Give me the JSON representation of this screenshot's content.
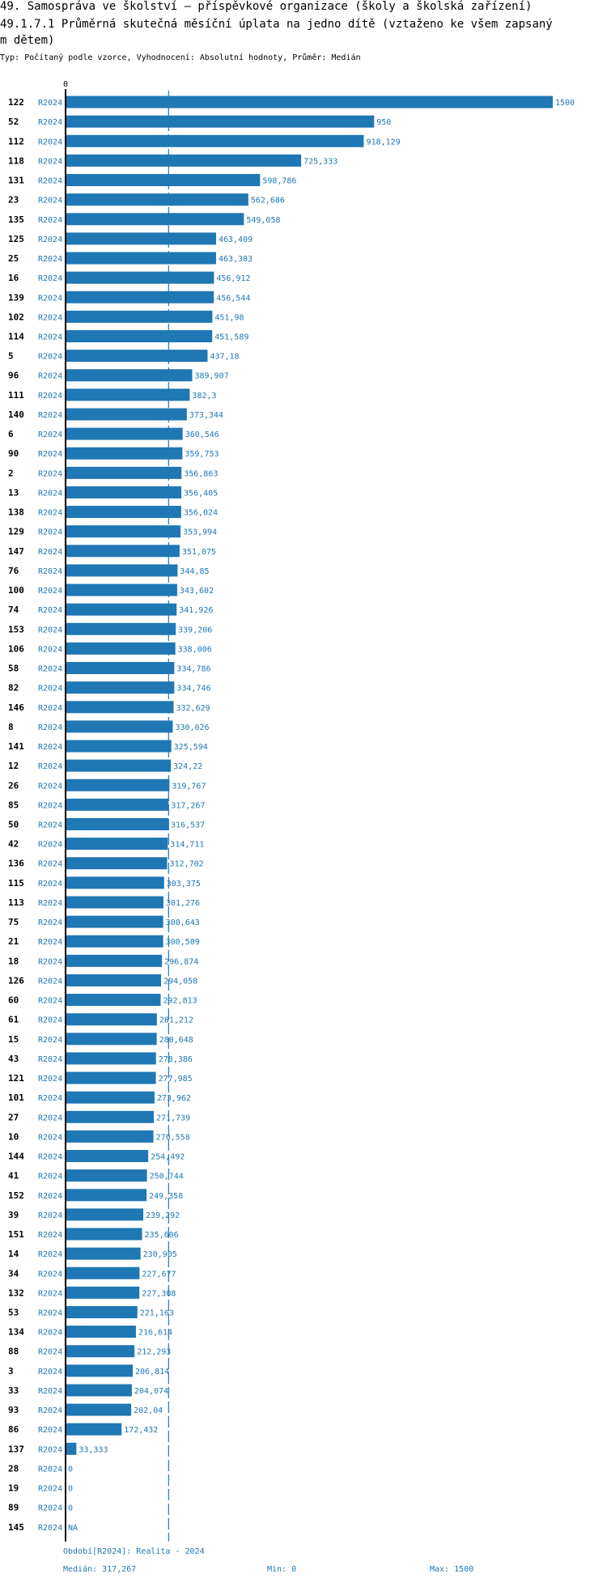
{
  "header": {
    "title_line1": "49. Samospráva ve školství – příspěvkové organizace (školy a školská zařízení)",
    "title_line2": "49.1.7.1 Průměrná skutečná měsíční úplata na jedno dítě (vztaženo ke všem zapsaný",
    "title_line3": "m dětem)",
    "subtitle": "Typ: Počítaný podle vzorce, Vyhodnocení: Absolutní hodnoty, Průměr: Medián"
  },
  "chart_data": {
    "type": "bar",
    "orientation": "horizontal",
    "x_axis_zero_label": "0",
    "xlim": [
      0,
      1500
    ],
    "median_line": 317.267,
    "bar_color": "#1f77b4",
    "rows": [
      {
        "id": "122",
        "period": "R2024",
        "value": 1500,
        "label": "1500"
      },
      {
        "id": "52",
        "period": "R2024",
        "value": 950,
        "label": "950"
      },
      {
        "id": "112",
        "period": "R2024",
        "value": 918.129,
        "label": "918,129"
      },
      {
        "id": "118",
        "period": "R2024",
        "value": 725.333,
        "label": "725,333"
      },
      {
        "id": "131",
        "period": "R2024",
        "value": 598.786,
        "label": "598,786"
      },
      {
        "id": "23",
        "period": "R2024",
        "value": 562.686,
        "label": "562,686"
      },
      {
        "id": "135",
        "period": "R2024",
        "value": 549.058,
        "label": "549,058"
      },
      {
        "id": "125",
        "period": "R2024",
        "value": 463.409,
        "label": "463,409"
      },
      {
        "id": "25",
        "period": "R2024",
        "value": 463.303,
        "label": "463,303"
      },
      {
        "id": "16",
        "period": "R2024",
        "value": 456.912,
        "label": "456,912"
      },
      {
        "id": "139",
        "period": "R2024",
        "value": 456.544,
        "label": "456,544"
      },
      {
        "id": "102",
        "period": "R2024",
        "value": 451.98,
        "label": "451,98"
      },
      {
        "id": "114",
        "period": "R2024",
        "value": 451.589,
        "label": "451,589"
      },
      {
        "id": "5",
        "period": "R2024",
        "value": 437.18,
        "label": "437,18"
      },
      {
        "id": "96",
        "period": "R2024",
        "value": 389.907,
        "label": "389,907"
      },
      {
        "id": "111",
        "period": "R2024",
        "value": 382.3,
        "label": "382,3"
      },
      {
        "id": "140",
        "period": "R2024",
        "value": 373.344,
        "label": "373,344"
      },
      {
        "id": "6",
        "period": "R2024",
        "value": 360.546,
        "label": "360,546"
      },
      {
        "id": "90",
        "period": "R2024",
        "value": 359.753,
        "label": "359,753"
      },
      {
        "id": "2",
        "period": "R2024",
        "value": 356.863,
        "label": "356,863"
      },
      {
        "id": "13",
        "period": "R2024",
        "value": 356.405,
        "label": "356,405"
      },
      {
        "id": "138",
        "period": "R2024",
        "value": 356.024,
        "label": "356,024"
      },
      {
        "id": "129",
        "period": "R2024",
        "value": 353.994,
        "label": "353,994"
      },
      {
        "id": "147",
        "period": "R2024",
        "value": 351.075,
        "label": "351,075"
      },
      {
        "id": "76",
        "period": "R2024",
        "value": 344.85,
        "label": "344,85"
      },
      {
        "id": "100",
        "period": "R2024",
        "value": 343.602,
        "label": "343,602"
      },
      {
        "id": "74",
        "period": "R2024",
        "value": 341.926,
        "label": "341,926"
      },
      {
        "id": "153",
        "period": "R2024",
        "value": 339.206,
        "label": "339,206"
      },
      {
        "id": "106",
        "period": "R2024",
        "value": 338.006,
        "label": "338,006"
      },
      {
        "id": "58",
        "period": "R2024",
        "value": 334.786,
        "label": "334,786"
      },
      {
        "id": "82",
        "period": "R2024",
        "value": 334.746,
        "label": "334,746"
      },
      {
        "id": "146",
        "period": "R2024",
        "value": 332.629,
        "label": "332,629"
      },
      {
        "id": "8",
        "period": "R2024",
        "value": 330.026,
        "label": "330,026"
      },
      {
        "id": "141",
        "period": "R2024",
        "value": 325.594,
        "label": "325,594"
      },
      {
        "id": "12",
        "period": "R2024",
        "value": 324.22,
        "label": "324,22"
      },
      {
        "id": "26",
        "period": "R2024",
        "value": 319.767,
        "label": "319,767"
      },
      {
        "id": "85",
        "period": "R2024",
        "value": 317.267,
        "label": "317,267"
      },
      {
        "id": "50",
        "period": "R2024",
        "value": 316.537,
        "label": "316,537"
      },
      {
        "id": "42",
        "period": "R2024",
        "value": 314.711,
        "label": "314,711"
      },
      {
        "id": "136",
        "period": "R2024",
        "value": 312.702,
        "label": "312,702"
      },
      {
        "id": "115",
        "period": "R2024",
        "value": 303.375,
        "label": "303,375"
      },
      {
        "id": "113",
        "period": "R2024",
        "value": 301.276,
        "label": "301,276"
      },
      {
        "id": "75",
        "period": "R2024",
        "value": 300.643,
        "label": "300,643"
      },
      {
        "id": "21",
        "period": "R2024",
        "value": 300.509,
        "label": "300,509"
      },
      {
        "id": "18",
        "period": "R2024",
        "value": 296.874,
        "label": "296,874"
      },
      {
        "id": "126",
        "period": "R2024",
        "value": 294.058,
        "label": "294,058"
      },
      {
        "id": "60",
        "period": "R2024",
        "value": 292.813,
        "label": "292,813"
      },
      {
        "id": "61",
        "period": "R2024",
        "value": 281.212,
        "label": "281,212"
      },
      {
        "id": "15",
        "period": "R2024",
        "value": 280.648,
        "label": "280,648"
      },
      {
        "id": "43",
        "period": "R2024",
        "value": 278.386,
        "label": "278,386"
      },
      {
        "id": "121",
        "period": "R2024",
        "value": 277.985,
        "label": "277,985"
      },
      {
        "id": "101",
        "period": "R2024",
        "value": 273.962,
        "label": "273,962"
      },
      {
        "id": "27",
        "period": "R2024",
        "value": 271.739,
        "label": "271,739"
      },
      {
        "id": "10",
        "period": "R2024",
        "value": 270.558,
        "label": "270,558"
      },
      {
        "id": "144",
        "period": "R2024",
        "value": 254.492,
        "label": "254,492"
      },
      {
        "id": "41",
        "period": "R2024",
        "value": 250.744,
        "label": "250,744"
      },
      {
        "id": "152",
        "period": "R2024",
        "value": 249.358,
        "label": "249,358"
      },
      {
        "id": "39",
        "period": "R2024",
        "value": 239.292,
        "label": "239,292"
      },
      {
        "id": "151",
        "period": "R2024",
        "value": 235.606,
        "label": "235,606"
      },
      {
        "id": "14",
        "period": "R2024",
        "value": 230.905,
        "label": "230,905"
      },
      {
        "id": "34",
        "period": "R2024",
        "value": 227.677,
        "label": "227,677"
      },
      {
        "id": "132",
        "period": "R2024",
        "value": 227.308,
        "label": "227,308"
      },
      {
        "id": "53",
        "period": "R2024",
        "value": 221.163,
        "label": "221,163"
      },
      {
        "id": "134",
        "period": "R2024",
        "value": 216.614,
        "label": "216,614"
      },
      {
        "id": "88",
        "period": "R2024",
        "value": 212.293,
        "label": "212,293"
      },
      {
        "id": "3",
        "period": "R2024",
        "value": 206.814,
        "label": "206,814"
      },
      {
        "id": "33",
        "period": "R2024",
        "value": 204.074,
        "label": "204,074"
      },
      {
        "id": "93",
        "period": "R2024",
        "value": 202.04,
        "label": "202,04"
      },
      {
        "id": "86",
        "period": "R2024",
        "value": 172.432,
        "label": "172,432"
      },
      {
        "id": "137",
        "period": "R2024",
        "value": 33.333,
        "label": "33,333"
      },
      {
        "id": "28",
        "period": "R2024",
        "value": 0,
        "label": "0"
      },
      {
        "id": "19",
        "period": "R2024",
        "value": 0,
        "label": "0"
      },
      {
        "id": "89",
        "period": "R2024",
        "value": 0,
        "label": "0"
      },
      {
        "id": "145",
        "period": "R2024",
        "value": null,
        "label": "NA"
      }
    ]
  },
  "footer": {
    "period": "Období[R2024]: Realita - 2024",
    "median": "Medián: 317,267",
    "min": "Min: 0",
    "max": "Max: 1500"
  }
}
